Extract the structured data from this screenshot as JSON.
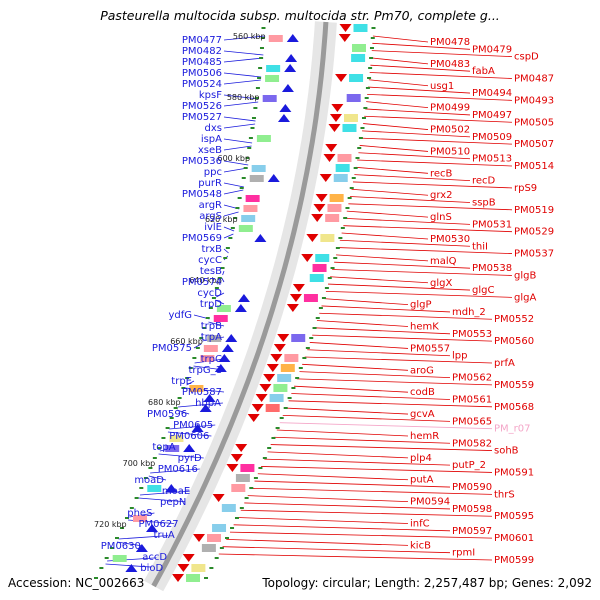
{
  "title": "Pasteurella multocida subsp. multocida str. Pm70, complete g...",
  "footer": {
    "accession": "Accession: NC_002663",
    "summary": "Topology: circular; Length: 2,257,487 bp; Genes: 2,092"
  },
  "colors": {
    "left_strand": "#1a1adc",
    "right_strand": "#e00000",
    "rna": "#f4a6c8",
    "backbone": "#9a9a9a",
    "tick": "#2a8a2a"
  },
  "kbp_ticks": [
    "560 kbp",
    "580 kbp",
    "600 kbp",
    "620 kbp",
    "640 kbp",
    "660 kbp",
    "680 kbp",
    "700 kbp",
    "720 kbp"
  ],
  "left_labels": [
    "PM0477",
    "PM0482",
    "PM0485",
    "PM0506",
    "PM0524",
    "kpsF",
    "PM0526",
    "PM0527",
    "dxs",
    "ispA",
    "xseB",
    "PM0536",
    "ppc",
    "purR",
    "PM0548",
    "argR",
    "argS",
    "ivlE",
    "PM0569",
    "trxB",
    "cycC",
    "tesB",
    "PM0574",
    "cycD",
    "trpD",
    "ydfG",
    "trpB",
    "trpA",
    "PM0575",
    "trpC",
    "trpG_1",
    "trpE",
    "PM0587",
    "hbpA",
    "PM0596",
    "PM0605",
    "PM0606",
    "topA",
    "pyrD",
    "PM0616",
    "moaD",
    "moaE",
    "pepN",
    "pheS",
    "PM0627",
    "truA",
    "PM0630",
    "accD",
    "bioD"
  ],
  "right_labels": [
    "PM0478",
    "PM0479",
    "cspD",
    "PM0483",
    "fabA",
    "PM0487",
    "usg1",
    "PM0494",
    "PM0493",
    "PM0499",
    "PM0497",
    "PM0505",
    "PM0502",
    "PM0509",
    "PM0507",
    "PM0510",
    "PM0513",
    "PM0514",
    "recB",
    "recD",
    "rpS9",
    "grx2",
    "sspB",
    "PM0519",
    "glnS",
    "PM0531",
    "PM0529",
    "PM0530",
    "thiI",
    "PM0537",
    "malQ",
    "PM0538",
    "glgB",
    "glgX",
    "glgC",
    "glgA",
    "glgP",
    "mdh_2",
    "PM0552",
    "hemK",
    "PM0553",
    "PM0560",
    "PM0557",
    "lpp",
    "prfA",
    "aroG",
    "PM0562",
    "PM0559",
    "codB",
    "PM0561",
    "PM0568",
    "gcvA",
    "PM0565",
    "PM_r07",
    "hemR",
    "PM0582",
    "sohB",
    "plp4",
    "putP_2",
    "PM0591",
    "putA",
    "PM0590",
    "thrS",
    "PM0594",
    "PM0598",
    "PM0595",
    "infC",
    "PM0597",
    "PM0601",
    "kicB",
    "rpmI",
    "PM0599"
  ]
}
